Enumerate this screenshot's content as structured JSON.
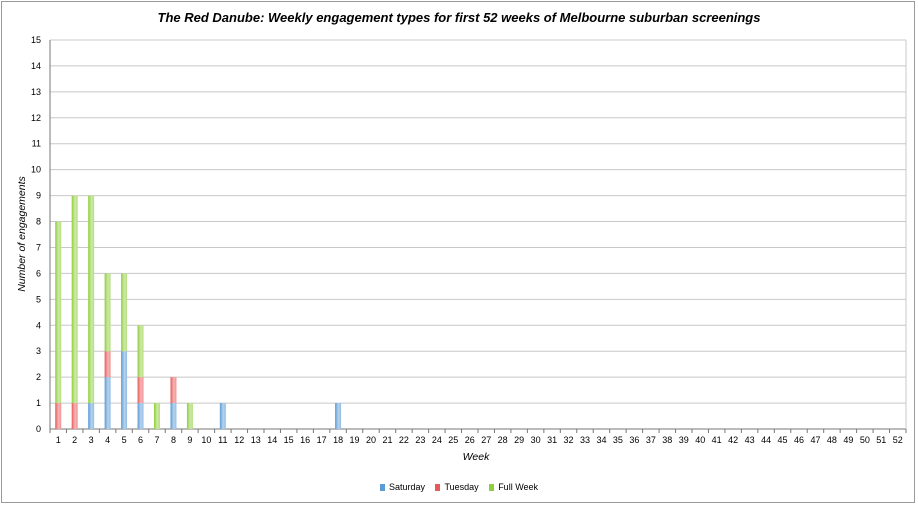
{
  "chart_data": {
    "type": "bar",
    "stacked": true,
    "title": "The Red Danube: Weekly engagement types for first 52 weeks of Melbourne suburban screenings",
    "xlabel": "Week",
    "ylabel": "Number of engagements",
    "ylim": [
      0,
      15
    ],
    "grid": true,
    "legend_position": "bottom",
    "categories": [
      "1",
      "2",
      "3",
      "4",
      "5",
      "6",
      "7",
      "8",
      "9",
      "10",
      "11",
      "12",
      "13",
      "14",
      "15",
      "16",
      "17",
      "18",
      "19",
      "20",
      "21",
      "22",
      "23",
      "24",
      "25",
      "26",
      "27",
      "28",
      "29",
      "30",
      "31",
      "32",
      "33",
      "34",
      "35",
      "36",
      "37",
      "38",
      "39",
      "40",
      "41",
      "42",
      "43",
      "44",
      "45",
      "46",
      "47",
      "48",
      "49",
      "50",
      "51",
      "52"
    ],
    "series": [
      {
        "name": "Saturday",
        "color": "#5b9bd5",
        "values": [
          0,
          0,
          1,
          2,
          3,
          1,
          0,
          1,
          0,
          0,
          1,
          0,
          0,
          0,
          0,
          0,
          0,
          1,
          0,
          0,
          0,
          0,
          0,
          0,
          0,
          0,
          0,
          0,
          0,
          0,
          0,
          0,
          0,
          0,
          0,
          0,
          0,
          0,
          0,
          0,
          0,
          0,
          0,
          0,
          0,
          0,
          0,
          0,
          0,
          0,
          0,
          0
        ]
      },
      {
        "name": "Tuesday",
        "color": "#e8595a",
        "values": [
          1,
          1,
          0,
          1,
          0,
          1,
          0,
          1,
          0,
          0,
          0,
          0,
          0,
          0,
          0,
          0,
          0,
          0,
          0,
          0,
          0,
          0,
          0,
          0,
          0,
          0,
          0,
          0,
          0,
          0,
          0,
          0,
          0,
          0,
          0,
          0,
          0,
          0,
          0,
          0,
          0,
          0,
          0,
          0,
          0,
          0,
          0,
          0,
          0,
          0,
          0,
          0
        ]
      },
      {
        "name": "Full Week",
        "color": "#8fce3c",
        "values": [
          7,
          8,
          8,
          3,
          3,
          2,
          1,
          0,
          1,
          0,
          0,
          0,
          0,
          0,
          0,
          0,
          0,
          0,
          0,
          0,
          0,
          0,
          0,
          0,
          0,
          0,
          0,
          0,
          0,
          0,
          0,
          0,
          0,
          0,
          0,
          0,
          0,
          0,
          0,
          0,
          0,
          0,
          0,
          0,
          0,
          0,
          0,
          0,
          0,
          0,
          0,
          0
        ]
      }
    ]
  }
}
